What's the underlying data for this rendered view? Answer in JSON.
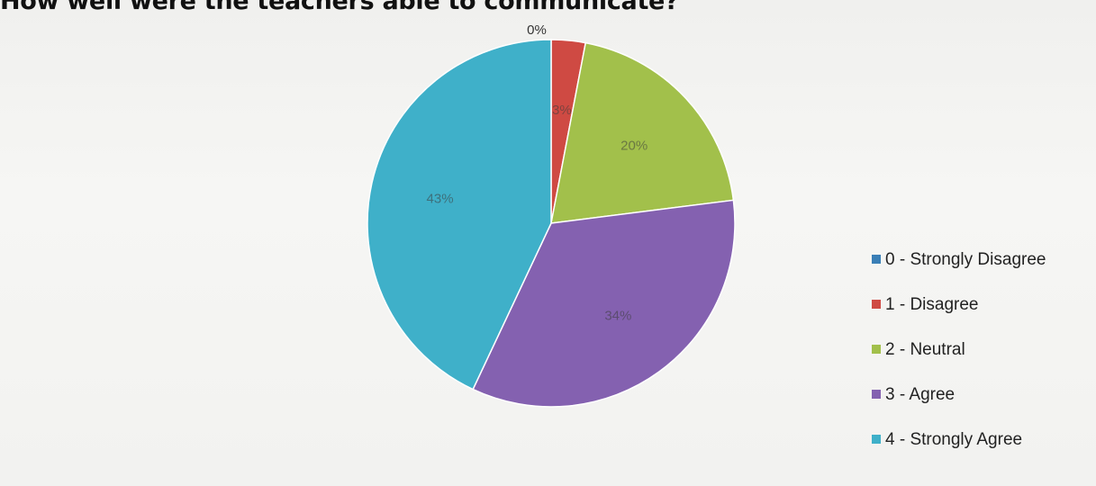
{
  "chart_data": {
    "type": "pie",
    "title": "How well were the teachers able to communicate?",
    "categories": [
      "0 - Strongly Disagree",
      "1 - Disagree",
      "2 - Neutral",
      "3 - Agree",
      "4 - Strongly Agree"
    ],
    "values": [
      0,
      3,
      20,
      34,
      43
    ],
    "data_labels": [
      "0%",
      "3%",
      "20%",
      "34%",
      "43%"
    ],
    "colors": [
      "#3a7fb6",
      "#cf4a43",
      "#a2c04b",
      "#8461b0",
      "#3fb0c9"
    ],
    "legend_position": "right"
  }
}
